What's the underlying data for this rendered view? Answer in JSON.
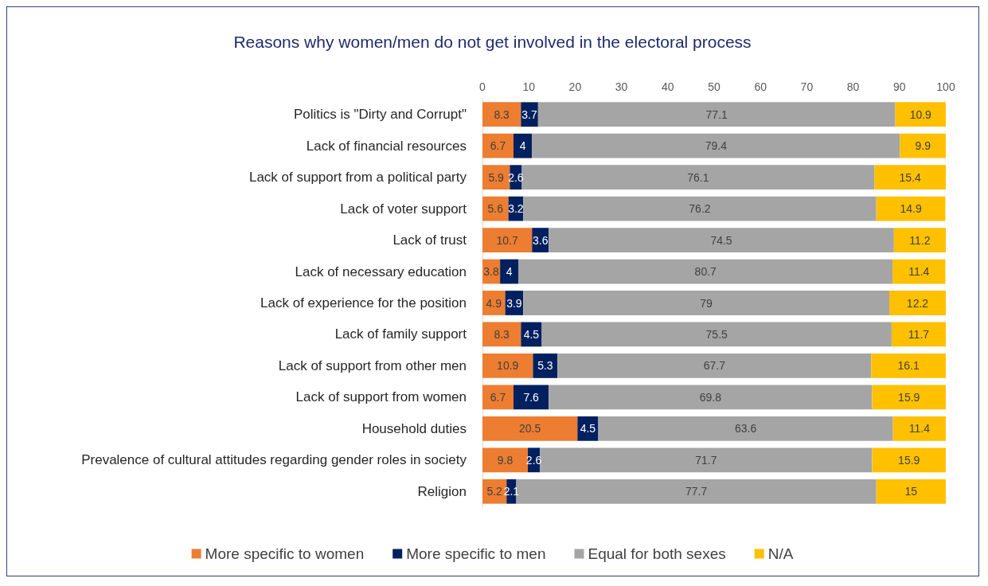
{
  "chart_data": {
    "type": "bar",
    "orientation": "horizontal",
    "stacked": true,
    "title": "Reasons why women/men do not get involved in the electoral process",
    "categories": [
      "Politics is \"Dirty and Corrupt\"",
      "Lack of financial resources",
      "Lack of support from a political party",
      "Lack of voter support",
      "Lack of trust",
      "Lack of necessary education",
      "Lack of experience for the position",
      "Lack of family support",
      "Lack of support from other men",
      "Lack of support from women",
      "Household duties",
      "Prevalence of cultural attitudes regarding gender roles in society",
      "Religion"
    ],
    "series": [
      {
        "name": "More specific to women",
        "color": "#ed7d31",
        "values": [
          8.3,
          6.7,
          5.9,
          5.6,
          10.7,
          3.8,
          4.9,
          8.3,
          10.9,
          6.7,
          20.5,
          9.8,
          5.2
        ]
      },
      {
        "name": "More specific to men",
        "color": "#002060",
        "values": [
          3.7,
          4,
          2.6,
          3.2,
          3.6,
          4,
          3.9,
          4.5,
          5.3,
          7.6,
          4.5,
          2.6,
          2.1
        ]
      },
      {
        "name": "Equal for both sexes",
        "color": "#a5a5a5",
        "values": [
          77.1,
          79.4,
          76.1,
          76.2,
          74.5,
          80.7,
          79,
          75.5,
          67.7,
          69.8,
          63.6,
          71.7,
          77.7
        ]
      },
      {
        "name": "N/A",
        "color": "#ffc000",
        "values": [
          10.9,
          9.9,
          15.4,
          14.9,
          11.2,
          11.4,
          12.2,
          11.7,
          16.1,
          15.9,
          11.4,
          15.9,
          15
        ]
      }
    ],
    "xlim": [
      0,
      100
    ],
    "xticks": [
      0,
      10,
      20,
      30,
      40,
      50,
      60,
      70,
      80,
      90,
      100
    ],
    "grid": false,
    "legend": "bottom",
    "data_labels": true
  }
}
